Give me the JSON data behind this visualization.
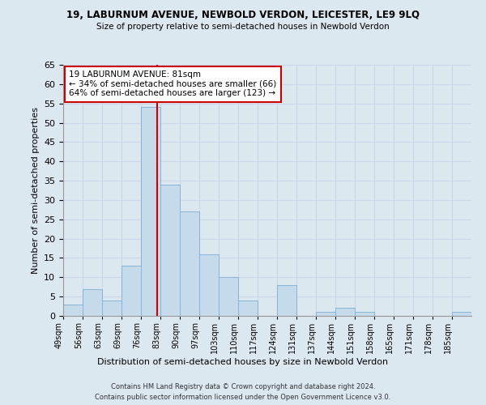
{
  "title1": "19, LABURNUM AVENUE, NEWBOLD VERDON, LEICESTER, LE9 9LQ",
  "title2": "Size of property relative to semi-detached houses in Newbold Verdon",
  "xlabel": "Distribution of semi-detached houses by size in Newbold Verdon",
  "ylabel": "Number of semi-detached properties",
  "footer1": "Contains HM Land Registry data © Crown copyright and database right 2024.",
  "footer2": "Contains public sector information licensed under the Open Government Licence v3.0.",
  "bin_labels": [
    "49sqm",
    "56sqm",
    "63sqm",
    "69sqm",
    "76sqm",
    "83sqm",
    "90sqm",
    "97sqm",
    "103sqm",
    "110sqm",
    "117sqm",
    "124sqm",
    "131sqm",
    "137sqm",
    "144sqm",
    "151sqm",
    "158sqm",
    "165sqm",
    "171sqm",
    "178sqm",
    "185sqm"
  ],
  "bar_heights": [
    3,
    7,
    4,
    13,
    54,
    34,
    27,
    16,
    10,
    4,
    0,
    8,
    0,
    1,
    2,
    1,
    0,
    0,
    0,
    0,
    1
  ],
  "bar_color": "#c5daea",
  "bar_edge_color": "#89b4d4",
  "marker_line_color": "#cc0000",
  "annotation_title": "19 LABURNUM AVENUE: 81sqm",
  "annotation_line1": "← 34% of semi-detached houses are smaller (66)",
  "annotation_line2": "64% of semi-detached houses are larger (123) →",
  "annotation_box_color": "#ffffff",
  "annotation_box_edge": "#cc0000",
  "ylim": [
    0,
    65
  ],
  "yticks": [
    0,
    5,
    10,
    15,
    20,
    25,
    30,
    35,
    40,
    45,
    50,
    55,
    60,
    65
  ],
  "grid_color": "#c8d8e8",
  "background_color": "#dce8f0"
}
